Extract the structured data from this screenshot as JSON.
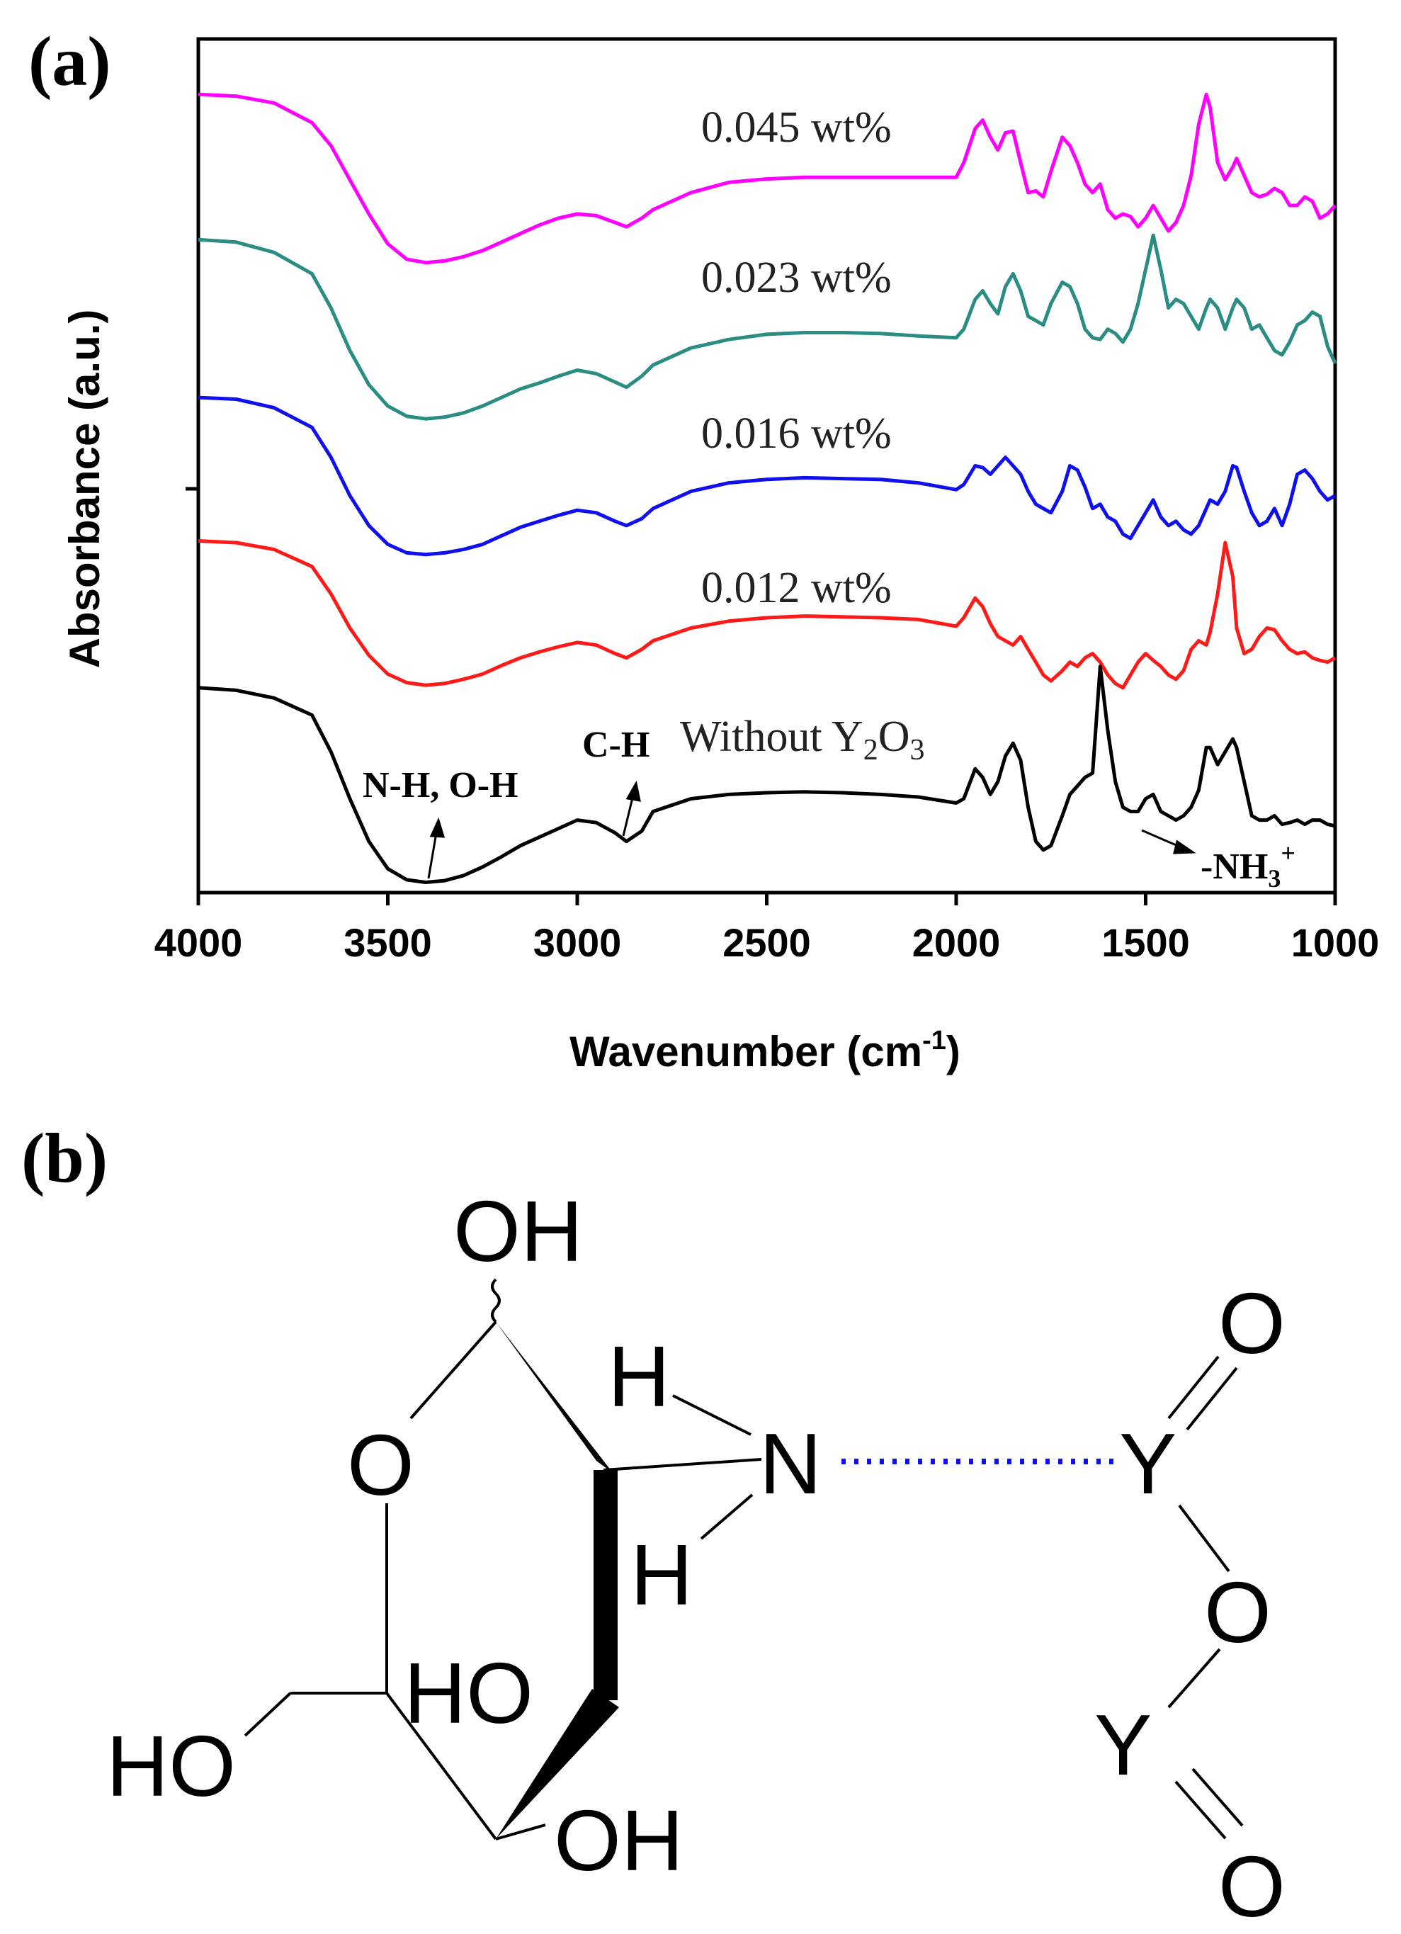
{
  "panel_a_label": "(a)",
  "panel_b_label": "(b)",
  "chart_data": {
    "type": "line",
    "title": "",
    "xlabel": "Wavenumber (cm",
    "xlabel_sup": "-1",
    "xlabel_close": ")",
    "ylabel": "Absorbance (a.u.)",
    "xlim": [
      4000,
      1000
    ],
    "ylim": [
      0,
      10
    ],
    "xticks": [
      4000,
      3500,
      3000,
      2500,
      2000,
      1500,
      1000
    ],
    "grid": false,
    "series": [
      {
        "name": "0.045 wt%",
        "color": "#ff00ff",
        "x": [
          4000,
          3900,
          3800,
          3700,
          3650,
          3600,
          3550,
          3500,
          3450,
          3400,
          3350,
          3300,
          3250,
          3200,
          3150,
          3100,
          3050,
          3000,
          2950,
          2900,
          2870,
          2830,
          2800,
          2700,
          2600,
          2500,
          2400,
          2300,
          2200,
          2100,
          2000,
          1980,
          1950,
          1930,
          1910,
          1890,
          1870,
          1850,
          1830,
          1810,
          1790,
          1770,
          1750,
          1720,
          1700,
          1680,
          1660,
          1640,
          1620,
          1600,
          1580,
          1560,
          1540,
          1520,
          1500,
          1480,
          1460,
          1440,
          1420,
          1400,
          1380,
          1360,
          1340,
          1330,
          1310,
          1290,
          1270,
          1260,
          1240,
          1220,
          1200,
          1180,
          1160,
          1140,
          1120,
          1100,
          1080,
          1060,
          1040,
          1020,
          1000
        ],
        "y": [
          9.35,
          9.33,
          9.25,
          9.02,
          8.75,
          8.35,
          7.95,
          7.6,
          7.42,
          7.38,
          7.4,
          7.45,
          7.52,
          7.62,
          7.72,
          7.82,
          7.9,
          7.95,
          7.93,
          7.85,
          7.8,
          7.9,
          8.0,
          8.2,
          8.32,
          8.36,
          8.38,
          8.38,
          8.38,
          8.38,
          8.38,
          8.55,
          8.95,
          9.05,
          8.85,
          8.7,
          8.9,
          8.92,
          8.55,
          8.2,
          8.22,
          8.15,
          8.45,
          8.85,
          8.75,
          8.55,
          8.3,
          8.2,
          8.3,
          8.0,
          7.9,
          7.95,
          7.92,
          7.8,
          7.9,
          8.05,
          7.9,
          7.75,
          7.85,
          8.05,
          8.4,
          9.0,
          9.35,
          9.2,
          8.55,
          8.35,
          8.5,
          8.6,
          8.4,
          8.2,
          8.15,
          8.18,
          8.25,
          8.2,
          8.05,
          8.05,
          8.15,
          8.1,
          7.9,
          7.95,
          8.05
        ]
      },
      {
        "name": "0.023 wt%",
        "color": "#2a8c82",
        "x": [
          4000,
          3900,
          3800,
          3700,
          3650,
          3600,
          3550,
          3500,
          3450,
          3400,
          3350,
          3300,
          3250,
          3200,
          3150,
          3100,
          3050,
          3000,
          2950,
          2900,
          2870,
          2830,
          2800,
          2700,
          2600,
          2500,
          2400,
          2300,
          2200,
          2100,
          2000,
          1980,
          1950,
          1930,
          1910,
          1890,
          1870,
          1850,
          1830,
          1810,
          1790,
          1770,
          1750,
          1720,
          1700,
          1680,
          1660,
          1640,
          1620,
          1600,
          1580,
          1560,
          1540,
          1520,
          1500,
          1480,
          1460,
          1440,
          1420,
          1400,
          1380,
          1360,
          1340,
          1330,
          1310,
          1290,
          1270,
          1260,
          1240,
          1220,
          1200,
          1180,
          1160,
          1140,
          1120,
          1100,
          1080,
          1060,
          1040,
          1020,
          1000
        ],
        "y": [
          7.65,
          7.62,
          7.5,
          7.25,
          6.85,
          6.35,
          5.95,
          5.7,
          5.58,
          5.55,
          5.57,
          5.62,
          5.7,
          5.8,
          5.9,
          5.97,
          6.05,
          6.12,
          6.08,
          5.98,
          5.92,
          6.05,
          6.18,
          6.38,
          6.48,
          6.54,
          6.56,
          6.56,
          6.55,
          6.52,
          6.5,
          6.6,
          6.95,
          7.05,
          6.9,
          6.78,
          7.1,
          7.25,
          7.05,
          6.75,
          6.7,
          6.65,
          6.9,
          7.15,
          7.1,
          6.9,
          6.6,
          6.5,
          6.48,
          6.6,
          6.55,
          6.45,
          6.6,
          6.9,
          7.3,
          7.7,
          7.3,
          6.85,
          6.95,
          6.9,
          6.75,
          6.6,
          6.85,
          6.95,
          6.85,
          6.6,
          6.85,
          6.95,
          6.85,
          6.6,
          6.65,
          6.5,
          6.35,
          6.3,
          6.45,
          6.65,
          6.7,
          6.8,
          6.75,
          6.4,
          6.2
        ]
      },
      {
        "name": "0.016 wt%",
        "color": "#1010ee",
        "x": [
          4000,
          3900,
          3800,
          3700,
          3650,
          3600,
          3550,
          3500,
          3450,
          3400,
          3350,
          3300,
          3250,
          3200,
          3150,
          3100,
          3050,
          3000,
          2950,
          2900,
          2870,
          2830,
          2800,
          2700,
          2600,
          2500,
          2400,
          2300,
          2200,
          2100,
          2000,
          1980,
          1950,
          1930,
          1910,
          1890,
          1870,
          1850,
          1830,
          1810,
          1790,
          1770,
          1750,
          1720,
          1700,
          1680,
          1660,
          1640,
          1620,
          1600,
          1580,
          1560,
          1540,
          1520,
          1500,
          1480,
          1460,
          1440,
          1420,
          1400,
          1380,
          1360,
          1340,
          1330,
          1310,
          1290,
          1270,
          1260,
          1240,
          1220,
          1200,
          1180,
          1160,
          1140,
          1120,
          1100,
          1080,
          1060,
          1040,
          1020,
          1000
        ],
        "y": [
          5.8,
          5.78,
          5.68,
          5.45,
          5.1,
          4.65,
          4.3,
          4.08,
          3.98,
          3.96,
          3.98,
          4.02,
          4.08,
          4.18,
          4.28,
          4.35,
          4.42,
          4.48,
          4.45,
          4.35,
          4.3,
          4.38,
          4.5,
          4.7,
          4.8,
          4.84,
          4.86,
          4.85,
          4.84,
          4.8,
          4.72,
          4.78,
          5.0,
          4.98,
          4.9,
          5.0,
          5.1,
          5.0,
          4.9,
          4.7,
          4.55,
          4.5,
          4.45,
          4.7,
          5.0,
          4.95,
          4.75,
          4.5,
          4.55,
          4.4,
          4.35,
          4.2,
          4.15,
          4.3,
          4.45,
          4.6,
          4.4,
          4.3,
          4.35,
          4.25,
          4.2,
          4.3,
          4.5,
          4.6,
          4.55,
          4.7,
          5.0,
          4.98,
          4.7,
          4.45,
          4.3,
          4.35,
          4.5,
          4.3,
          4.55,
          4.9,
          4.95,
          4.85,
          4.7,
          4.6,
          4.65
        ]
      },
      {
        "name": "0.012 wt%",
        "color": "#ff1a1a",
        "x": [
          4000,
          3900,
          3800,
          3700,
          3650,
          3600,
          3550,
          3500,
          3450,
          3400,
          3350,
          3300,
          3250,
          3200,
          3150,
          3100,
          3050,
          3000,
          2950,
          2900,
          2870,
          2830,
          2800,
          2700,
          2600,
          2500,
          2400,
          2300,
          2200,
          2100,
          2000,
          1980,
          1950,
          1930,
          1910,
          1890,
          1870,
          1850,
          1830,
          1810,
          1790,
          1770,
          1750,
          1720,
          1700,
          1680,
          1660,
          1640,
          1620,
          1600,
          1580,
          1560,
          1540,
          1520,
          1500,
          1480,
          1460,
          1440,
          1420,
          1400,
          1380,
          1360,
          1340,
          1330,
          1310,
          1290,
          1270,
          1260,
          1240,
          1220,
          1200,
          1180,
          1160,
          1140,
          1120,
          1100,
          1080,
          1060,
          1040,
          1020,
          1000
        ],
        "y": [
          4.12,
          4.1,
          4.02,
          3.82,
          3.5,
          3.1,
          2.78,
          2.56,
          2.46,
          2.43,
          2.45,
          2.5,
          2.56,
          2.66,
          2.75,
          2.82,
          2.88,
          2.93,
          2.9,
          2.8,
          2.75,
          2.85,
          2.95,
          3.1,
          3.18,
          3.22,
          3.24,
          3.23,
          3.22,
          3.2,
          3.12,
          3.22,
          3.45,
          3.35,
          3.15,
          3.0,
          2.95,
          2.9,
          3.0,
          2.85,
          2.7,
          2.55,
          2.48,
          2.6,
          2.7,
          2.65,
          2.75,
          2.8,
          2.7,
          2.55,
          2.45,
          2.4,
          2.55,
          2.7,
          2.8,
          2.72,
          2.65,
          2.55,
          2.5,
          2.6,
          2.85,
          2.95,
          2.9,
          3.05,
          3.5,
          4.1,
          3.7,
          3.1,
          2.8,
          2.85,
          3.0,
          3.1,
          3.08,
          2.95,
          2.85,
          2.8,
          2.82,
          2.75,
          2.72,
          2.7,
          2.75
        ]
      },
      {
        "name": "Without Y2O3",
        "color": "#000000",
        "x": [
          4000,
          3900,
          3800,
          3700,
          3650,
          3600,
          3550,
          3500,
          3450,
          3400,
          3350,
          3300,
          3250,
          3200,
          3150,
          3100,
          3050,
          3000,
          2950,
          2900,
          2870,
          2830,
          2800,
          2700,
          2600,
          2500,
          2400,
          2300,
          2200,
          2100,
          2000,
          1980,
          1950,
          1930,
          1910,
          1890,
          1870,
          1850,
          1830,
          1810,
          1790,
          1770,
          1750,
          1720,
          1700,
          1680,
          1660,
          1640,
          1620,
          1600,
          1580,
          1560,
          1540,
          1520,
          1500,
          1480,
          1460,
          1440,
          1420,
          1400,
          1380,
          1360,
          1340,
          1330,
          1310,
          1290,
          1270,
          1260,
          1240,
          1220,
          1200,
          1180,
          1160,
          1140,
          1120,
          1100,
          1080,
          1060,
          1040,
          1020,
          1000
        ],
        "y": [
          2.4,
          2.37,
          2.28,
          2.08,
          1.65,
          1.1,
          0.6,
          0.28,
          0.15,
          0.12,
          0.14,
          0.2,
          0.3,
          0.42,
          0.55,
          0.65,
          0.75,
          0.85,
          0.82,
          0.7,
          0.6,
          0.72,
          0.95,
          1.1,
          1.15,
          1.17,
          1.18,
          1.17,
          1.15,
          1.12,
          1.05,
          1.1,
          1.45,
          1.35,
          1.15,
          1.3,
          1.6,
          1.75,
          1.55,
          1.0,
          0.6,
          0.5,
          0.55,
          0.9,
          1.15,
          1.25,
          1.35,
          1.4,
          2.65,
          1.9,
          1.3,
          1.0,
          0.95,
          0.95,
          1.1,
          1.15,
          0.95,
          0.9,
          0.85,
          0.9,
          1.0,
          1.2,
          1.7,
          1.7,
          1.5,
          1.65,
          1.8,
          1.7,
          1.3,
          0.9,
          0.85,
          0.85,
          0.9,
          0.8,
          0.82,
          0.85,
          0.8,
          0.85,
          0.85,
          0.8,
          0.78
        ]
      }
    ],
    "annotations": [
      {
        "text": "N-H, O-H"
      },
      {
        "text": "C-H"
      },
      {
        "text": "-NH",
        "sub": "3",
        "sup": "+"
      }
    ]
  },
  "structure": {
    "atoms": {
      "oh_top": "OH",
      "o_ring": "O",
      "h_upper": "H",
      "n": "N",
      "h_lower": "H",
      "ho_mid": "HO",
      "ho_left": "HO",
      "oh_bottom": "OH",
      "y_top": "Y",
      "o_top": "O",
      "o_bridge": "O",
      "y_bottom": "Y",
      "o_bottom": "O"
    },
    "colors": {
      "bond": "#000000",
      "coordination": "#1010ee"
    }
  }
}
